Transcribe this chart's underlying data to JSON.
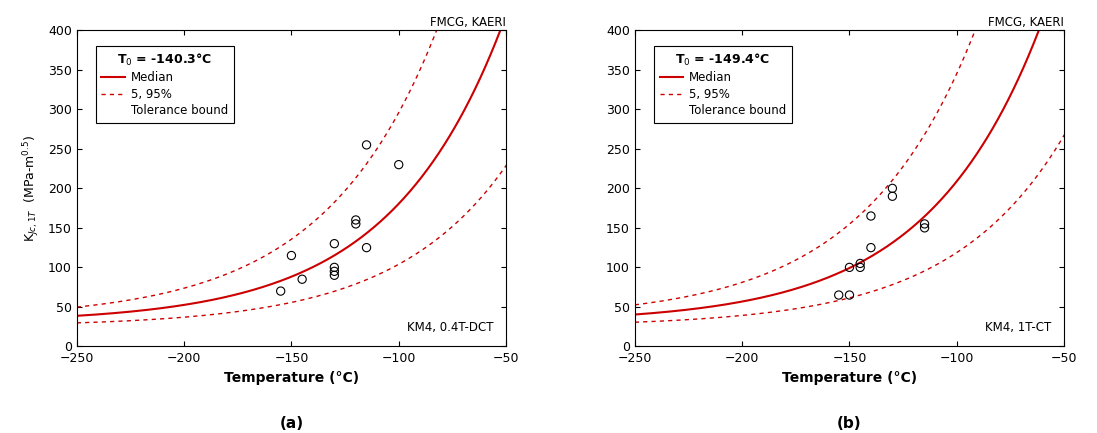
{
  "panel_a": {
    "T0": -140.3,
    "label_T0": "T$_0$ = -140.3°C",
    "specimen_label": "KM4, 0.4T-DCT",
    "data_x": [
      -155,
      -150,
      -145,
      -130,
      -130,
      -130,
      -130,
      -120,
      -120,
      -115,
      -115,
      -100
    ],
    "data_y": [
      70,
      115,
      85,
      90,
      95,
      100,
      130,
      155,
      160,
      125,
      255,
      230
    ]
  },
  "panel_b": {
    "T0": -149.4,
    "label_T0": "T$_0$ = -149.4°C",
    "specimen_label": "KM4, 1T-CT",
    "data_x": [
      -155,
      -150,
      -150,
      -145,
      -145,
      -140,
      -140,
      -130,
      -130,
      -115,
      -115
    ],
    "data_y": [
      65,
      65,
      100,
      100,
      105,
      125,
      165,
      190,
      200,
      150,
      155
    ]
  },
  "header_text": "FMCG, KAERI",
  "xlabel": "Temperature (°C)",
  "ylabel": "K$_{Jc,1T}$  (MPa-m$^{0.5}$)",
  "xlim": [
    -250,
    -50
  ],
  "ylim": [
    0,
    400
  ],
  "xticks": [
    -250,
    -200,
    -150,
    -100,
    -50
  ],
  "yticks": [
    0,
    50,
    100,
    150,
    200,
    250,
    300,
    350,
    400
  ],
  "median_color": "#cc0000",
  "bound_color": "#cc0000",
  "data_color": "black"
}
